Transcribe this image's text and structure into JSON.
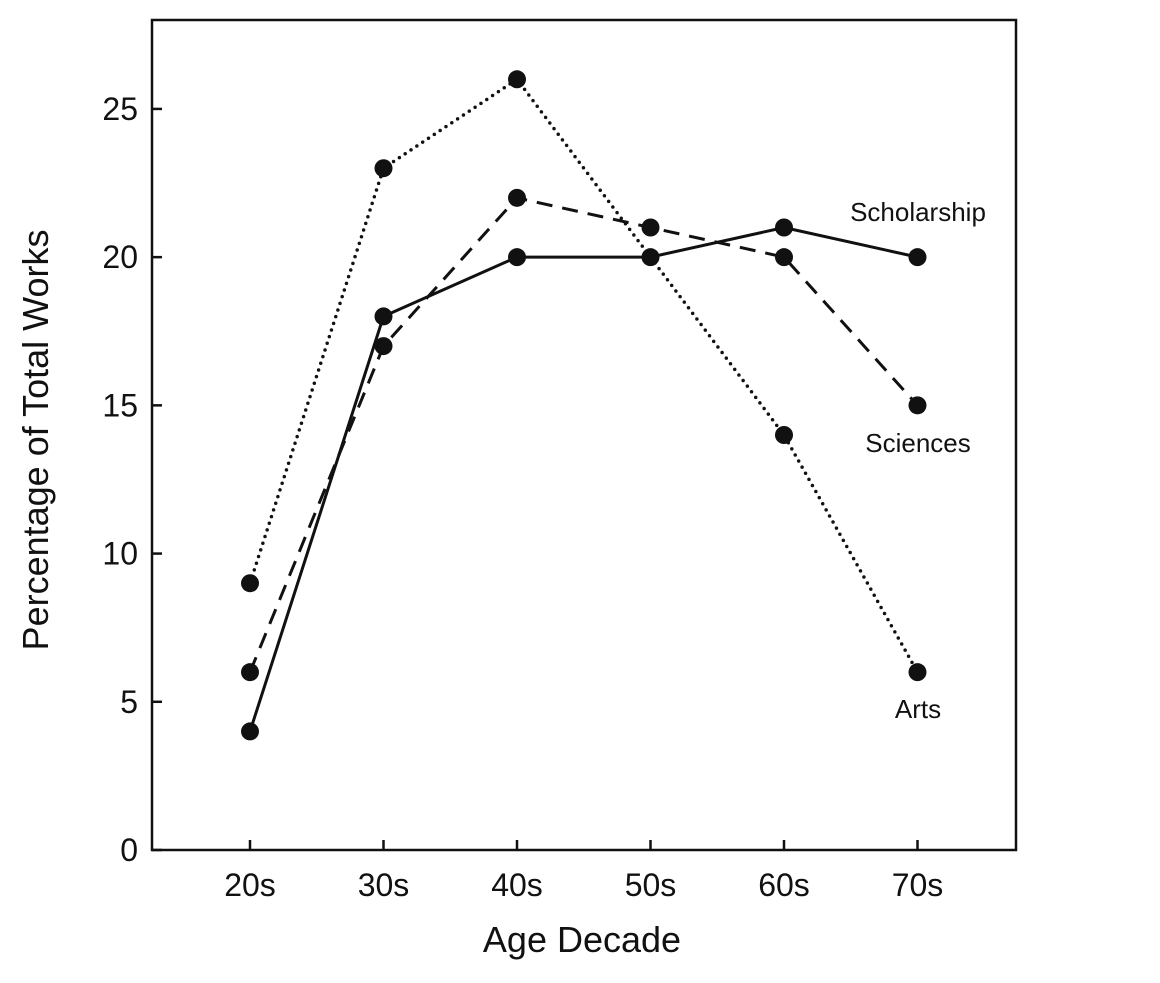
{
  "chart_data": {
    "type": "line",
    "title": "",
    "xlabel": "Age Decade",
    "ylabel": "Percentage of Total Works",
    "categories": [
      "20s",
      "30s",
      "40s",
      "50s",
      "60s",
      "70s"
    ],
    "ylim": [
      0,
      28
    ],
    "yticks": [
      0,
      5,
      10,
      15,
      20,
      25
    ],
    "grid": false,
    "legend": "none (series labeled directly on lines)",
    "series": [
      {
        "name": "Scholarship",
        "line_style": "solid",
        "values": [
          4,
          18,
          20,
          20,
          21,
          20
        ]
      },
      {
        "name": "Sciences",
        "line_style": "dashed",
        "values": [
          6,
          17,
          22,
          21,
          20,
          15
        ]
      },
      {
        "name": "Arts",
        "line_style": "dotted",
        "values": [
          9,
          23,
          26,
          null,
          14,
          6
        ]
      }
    ],
    "colors": {
      "ink": "#111111",
      "background": "#ffffff"
    }
  }
}
